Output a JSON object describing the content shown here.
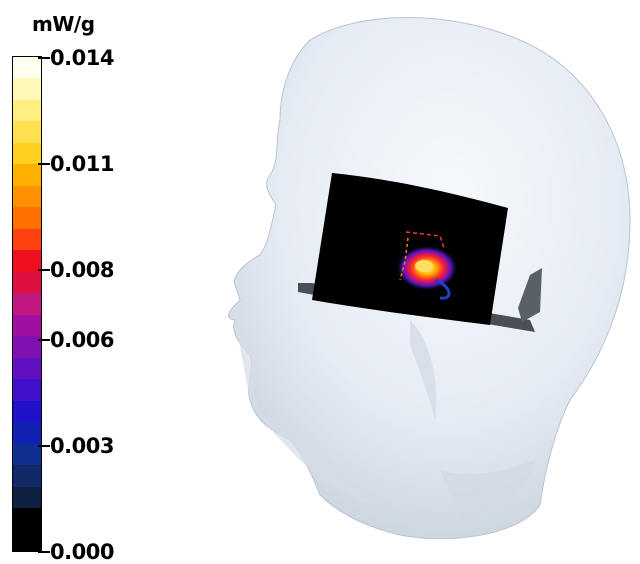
{
  "colorbar": {
    "unit": "mW/g",
    "ticks": [
      {
        "label": "0.014",
        "value": 0.014
      },
      {
        "label": "0.011",
        "value": 0.011
      },
      {
        "label": "0.008",
        "value": 0.008
      },
      {
        "label": "0.006",
        "value": 0.006
      },
      {
        "label": "0.003",
        "value": 0.003
      },
      {
        "label": "0.000",
        "value": 0.0
      }
    ],
    "colors_top_to_bottom": [
      "#fffff0",
      "#fff8b8",
      "#fff080",
      "#ffe050",
      "#ffd020",
      "#ffb000",
      "#ff9000",
      "#ff7000",
      "#ff4010",
      "#ee1020",
      "#dd1040",
      "#c01880",
      "#a010a0",
      "#8010b0",
      "#6010c0",
      "#4010c8",
      "#2010c8",
      "#1020b0",
      "#103090",
      "#102868",
      "#102040",
      "#000000",
      "#000000"
    ]
  },
  "scene": {
    "head_color": "#e8eef6",
    "head_shadow": "#c9d3df",
    "panel_color": "#000000",
    "phone_color": "#4a4f55"
  }
}
